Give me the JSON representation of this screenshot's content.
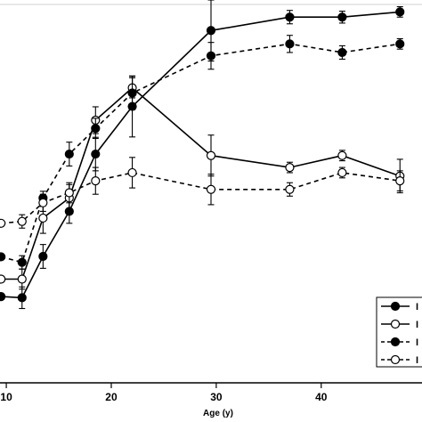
{
  "chart_data": {
    "type": "line",
    "xlabel": "Age (y)",
    "xticks": [
      10,
      20,
      30,
      40
    ],
    "xlim": [
      9.4,
      49.6
    ],
    "ylim": [
      0,
      100
    ],
    "grid": false,
    "legend_placement": "bottom-right",
    "series": [
      {
        "name": "I",
        "marker": "filled",
        "line": "solid",
        "color": "#000000",
        "points": [
          {
            "x": 9.5,
            "y": 20.3,
            "err": 0
          },
          {
            "x": 11.5,
            "y": 20.0,
            "err": 2.9
          },
          {
            "x": 13.5,
            "y": 31.1,
            "err": 3.2
          },
          {
            "x": 16.0,
            "y": 43.2,
            "err": 3.2
          },
          {
            "x": 18.5,
            "y": 58.6,
            "err": 4.5
          },
          {
            "x": 22.0,
            "y": 71.4,
            "err": 8.2
          },
          {
            "x": 29.5,
            "y": 91.8,
            "err": 8.2
          },
          {
            "x": 37.0,
            "y": 95.4,
            "err": 1.8
          },
          {
            "x": 42.0,
            "y": 95.4,
            "err": 1.6
          },
          {
            "x": 47.5,
            "y": 96.8,
            "err": 1.4
          }
        ]
      },
      {
        "name": "I",
        "marker": "open",
        "line": "solid",
        "color": "#000000",
        "points": [
          {
            "x": 9.5,
            "y": 25.0,
            "err": 0
          },
          {
            "x": 11.5,
            "y": 25.0,
            "err": 2.7
          },
          {
            "x": 13.5,
            "y": 41.4,
            "err": 4.1
          },
          {
            "x": 16.0,
            "y": 46.8,
            "err": 3.6
          },
          {
            "x": 18.5,
            "y": 67.7,
            "err": 3.6
          },
          {
            "x": 22.0,
            "y": 76.4,
            "err": 2.7
          },
          {
            "x": 29.5,
            "y": 58.2,
            "err": 5.5
          },
          {
            "x": 37.0,
            "y": 55.0,
            "err": 1.4
          },
          {
            "x": 42.0,
            "y": 58.2,
            "err": 1.4
          },
          {
            "x": 47.5,
            "y": 52.7,
            "err": 4.5
          }
        ]
      },
      {
        "name": "I",
        "marker": "filled",
        "line": "dashed",
        "color": "#000000",
        "points": [
          {
            "x": 9.5,
            "y": 31.0,
            "err": 0
          },
          {
            "x": 11.5,
            "y": 29.5,
            "err": 1.8
          },
          {
            "x": 13.5,
            "y": 46.8,
            "err": 1.8
          },
          {
            "x": 16.0,
            "y": 58.6,
            "err": 3.2
          },
          {
            "x": 18.5,
            "y": 65.5,
            "err": 2.7
          },
          {
            "x": 22.0,
            "y": 75.0,
            "err": 4.5
          },
          {
            "x": 29.5,
            "y": 85.0,
            "err": 3.6
          },
          {
            "x": 37.0,
            "y": 88.2,
            "err": 2.3
          },
          {
            "x": 42.0,
            "y": 85.9,
            "err": 1.8
          },
          {
            "x": 47.5,
            "y": 88.2,
            "err": 1.4
          }
        ]
      },
      {
        "name": "I",
        "marker": "open",
        "line": "dashed",
        "color": "#000000",
        "points": [
          {
            "x": 9.5,
            "y": 40.0,
            "err": 0
          },
          {
            "x": 11.5,
            "y": 40.5,
            "err": 1.8
          },
          {
            "x": 13.5,
            "y": 45.5,
            "err": 2.3
          },
          {
            "x": 16.0,
            "y": 48.2,
            "err": 2.7
          },
          {
            "x": 18.5,
            "y": 51.4,
            "err": 3.6
          },
          {
            "x": 22.0,
            "y": 53.6,
            "err": 4.1
          },
          {
            "x": 29.5,
            "y": 49.1,
            "err": 4.1
          },
          {
            "x": 37.0,
            "y": 49.1,
            "err": 1.8
          },
          {
            "x": 42.0,
            "y": 53.6,
            "err": 1.4
          },
          {
            "x": 47.5,
            "y": 51.4,
            "err": 2.7
          }
        ]
      }
    ]
  }
}
